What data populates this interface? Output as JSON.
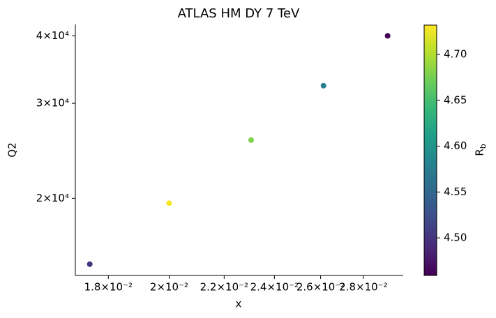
{
  "chart_data": {
    "type": "scatter",
    "title": "ATLAS HM DY 7 TeV",
    "x_label": "x",
    "y_label": "Q2",
    "x": [
      0.01743,
      0.02,
      0.02305,
      0.02613,
      0.0292
    ],
    "values": [
      15100,
      19590,
      25640,
      32340,
      40000
    ],
    "color_values": [
      4.5,
      4.73,
      4.68,
      4.58,
      4.46
    ],
    "colormap": "viridis",
    "colorbar_label": "R_b",
    "clim": [
      4.459,
      4.732
    ],
    "cticks": [
      {
        "value": 4.5,
        "label": "4.50"
      },
      {
        "value": 4.55,
        "label": "4.55"
      },
      {
        "value": 4.6,
        "label": "4.60"
      },
      {
        "value": 4.65,
        "label": "4.65"
      },
      {
        "value": 4.7,
        "label": "4.70"
      }
    ],
    "xscale": "log",
    "yscale": "log",
    "xlim": [
      0.017,
      0.03
    ],
    "ylim": [
      14390,
      42000
    ],
    "xticks": [
      {
        "value": 0.018,
        "label": "1.8×10⁻²"
      },
      {
        "value": 0.02,
        "label": "2×10⁻²"
      },
      {
        "value": 0.022,
        "label": "2.2×10⁻²"
      },
      {
        "value": 0.024,
        "label": "2.4×10⁻²"
      },
      {
        "value": 0.026,
        "label": "2.6×10⁻²"
      },
      {
        "value": 0.028,
        "label": "2.8×10⁻²"
      }
    ],
    "yticks": [
      {
        "value": 20000,
        "label": "2×10⁴"
      },
      {
        "value": 30000,
        "label": "3×10⁴"
      },
      {
        "value": 40000,
        "label": "4×10⁴"
      }
    ],
    "grid": false
  }
}
